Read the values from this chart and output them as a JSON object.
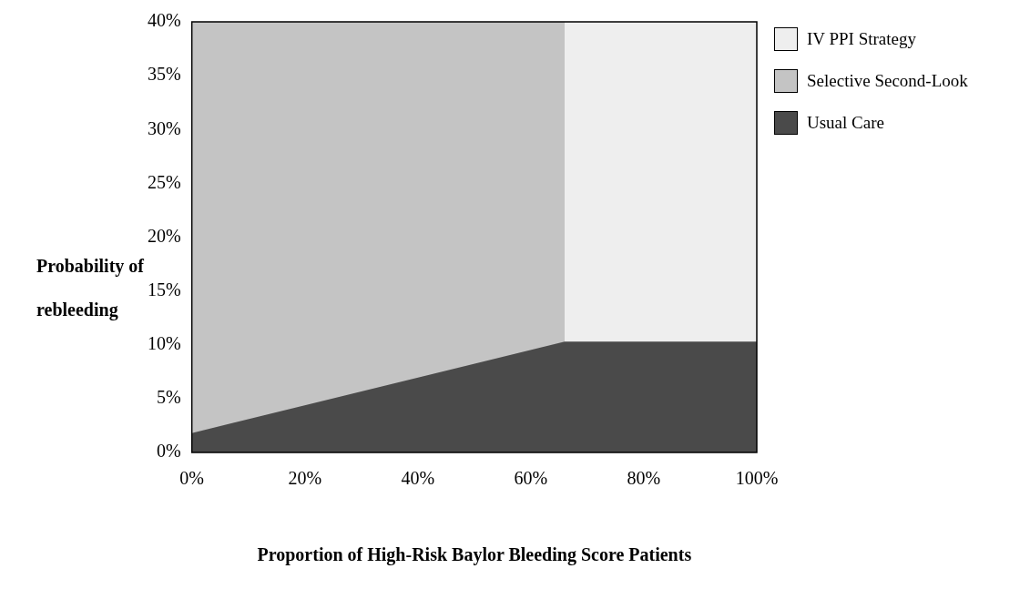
{
  "chart_data": {
    "type": "area",
    "xlabel": "Proportion of High-Risk Baylor Bleeding Score Patients",
    "ylabel": "Probability of rebleeding",
    "xlim": [
      0,
      100
    ],
    "xticks": [
      {
        "value": 0,
        "label": "0%"
      },
      {
        "value": 20,
        "label": "20%"
      },
      {
        "value": 40,
        "label": "40%"
      },
      {
        "value": 60,
        "label": "60%"
      },
      {
        "value": 80,
        "label": "80%"
      },
      {
        "value": 100,
        "label": "100%"
      }
    ],
    "ylim": [
      0,
      40
    ],
    "yticks": [
      {
        "value": 0,
        "label": "0%"
      },
      {
        "value": 5,
        "label": "5%"
      },
      {
        "value": 10,
        "label": "10%"
      },
      {
        "value": 15,
        "label": "15%"
      },
      {
        "value": 20,
        "label": "20%"
      },
      {
        "value": 25,
        "label": "25%"
      },
      {
        "value": 30,
        "label": "30%"
      },
      {
        "value": 35,
        "label": "35%"
      },
      {
        "value": 40,
        "label": "40%"
      }
    ],
    "grid": false,
    "legend": "right",
    "marker": "none",
    "series": [
      {
        "name": "IV PPI Strategy",
        "color": "#eeeeee",
        "x": [
          66,
          100
        ],
        "values": [
          40,
          40
        ]
      },
      {
        "name": "Selective Second-Look",
        "color": "#c4c4c4",
        "x": [
          0,
          66
        ],
        "values": [
          40,
          40
        ]
      },
      {
        "name": "Usual Care",
        "color": "#4a4a4a",
        "x": [
          0,
          66,
          100
        ],
        "values": [
          1.8,
          10.3,
          10.3
        ]
      }
    ]
  }
}
